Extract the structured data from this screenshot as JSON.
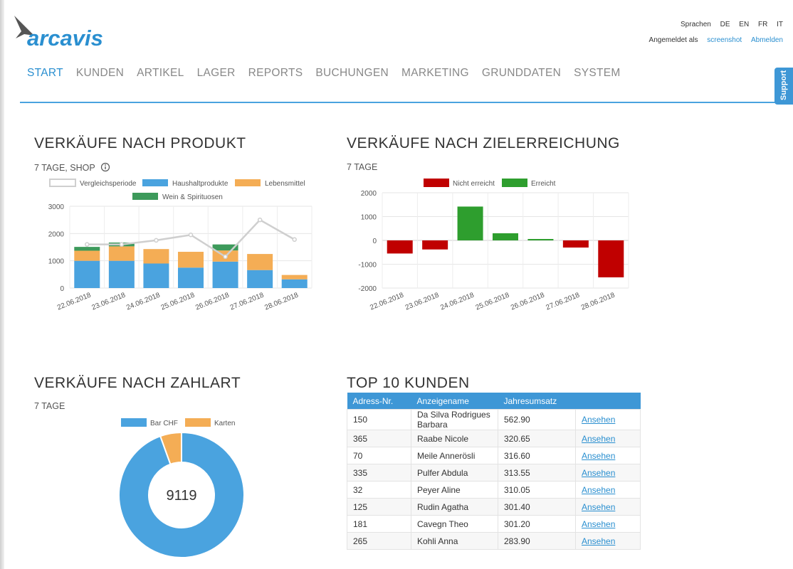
{
  "header": {
    "brand": "arcavis",
    "languages_label": "Sprachen",
    "languages": [
      "DE",
      "EN",
      "FR",
      "IT"
    ],
    "logged_in_label": "Angemeldet als",
    "username": "screenshot",
    "logout": "Abmelden",
    "support": "Support"
  },
  "nav": [
    "START",
    "KUNDEN",
    "ARTIKEL",
    "LAGER",
    "REPORTS",
    "BUCHUNGEN",
    "MARKETING",
    "GRUNDDATEN",
    "SYSTEM"
  ],
  "colors": {
    "accent": "#2a8fd0",
    "blue": "#4aa3df",
    "orange": "#f4ad55",
    "green": "#3d9a5b",
    "red": "#c00000",
    "bright_green": "#2e9e2e",
    "gray": "#cfcfcf"
  },
  "sections": {
    "product": {
      "title": "VERKÄUFE NACH PRODUKT",
      "subtitle": "7 TAGE, SHOP",
      "info_icon": "info-icon"
    },
    "goal": {
      "title": "VERKÄUFE NACH ZIELERREICHUNG",
      "subtitle": "7 TAGE"
    },
    "payment": {
      "title": "VERKÄUFE NACH ZAHLART",
      "subtitle": "7 TAGE"
    },
    "customers": {
      "title": "TOP 10 KUNDEN"
    }
  },
  "chart_data": [
    {
      "type": "bar",
      "stacked": true,
      "categories": [
        "22.06.2018",
        "23.06.2018",
        "24.06.2018",
        "25.06.2018",
        "26.06.2018",
        "27.06.2018",
        "28.06.2018"
      ],
      "series": [
        {
          "name": "Haushaltprodukte",
          "values": [
            1000,
            1000,
            900,
            750,
            970,
            660,
            320
          ]
        },
        {
          "name": "Lebensmittel",
          "values": [
            370,
            530,
            530,
            580,
            410,
            590,
            160
          ]
        },
        {
          "name": "Wein & Spirituosen",
          "values": [
            140,
            140,
            0,
            0,
            220,
            0,
            0
          ]
        }
      ],
      "line_series": {
        "name": "Vergleichsperiode",
        "values": [
          1600,
          1600,
          1750,
          1950,
          1150,
          2500,
          1780
        ]
      },
      "yticks": [
        0,
        1000,
        2000,
        3000
      ],
      "ylim": [
        0,
        3000
      ],
      "grid": true,
      "legend": "top"
    },
    {
      "type": "bar",
      "categories": [
        "22.06.2018",
        "23.06.2018",
        "24.06.2018",
        "25.06.2018",
        "26.06.2018",
        "27.06.2018",
        "28.06.2018"
      ],
      "series": [
        {
          "name": "Nicht erreicht",
          "values": [
            -550,
            -380,
            0,
            0,
            0,
            -300,
            -1550
          ]
        },
        {
          "name": "Erreicht",
          "values": [
            0,
            0,
            1420,
            300,
            60,
            0,
            0
          ]
        }
      ],
      "yticks": [
        -2000,
        -1000,
        0,
        1000,
        2000
      ],
      "ylim": [
        -2000,
        2000
      ],
      "grid": true,
      "legend": "top"
    },
    {
      "type": "pie",
      "doughnut": true,
      "center_label": "9119",
      "labels": [
        "Bar CHF",
        "Karten"
      ],
      "values": [
        94.5,
        5.5
      ],
      "legend": "top"
    }
  ],
  "table": {
    "headers": [
      "Adress-Nr.",
      "Anzeigename",
      "Jahresumsatz",
      ""
    ],
    "link_label": "Ansehen",
    "rows": [
      [
        "150",
        "Da Silva Rodrigues Barbara",
        "562.90"
      ],
      [
        "365",
        "Raabe Nicole",
        "320.65"
      ],
      [
        "70",
        "Meile Annerösli",
        "316.60"
      ],
      [
        "335",
        "Pulfer Abdula",
        "313.55"
      ],
      [
        "32",
        "Peyer Aline",
        "310.05"
      ],
      [
        "125",
        "Rudin Agatha",
        "301.40"
      ],
      [
        "181",
        "Cavegn Theo",
        "301.20"
      ],
      [
        "265",
        "Kohli Anna",
        "283.90"
      ]
    ]
  }
}
